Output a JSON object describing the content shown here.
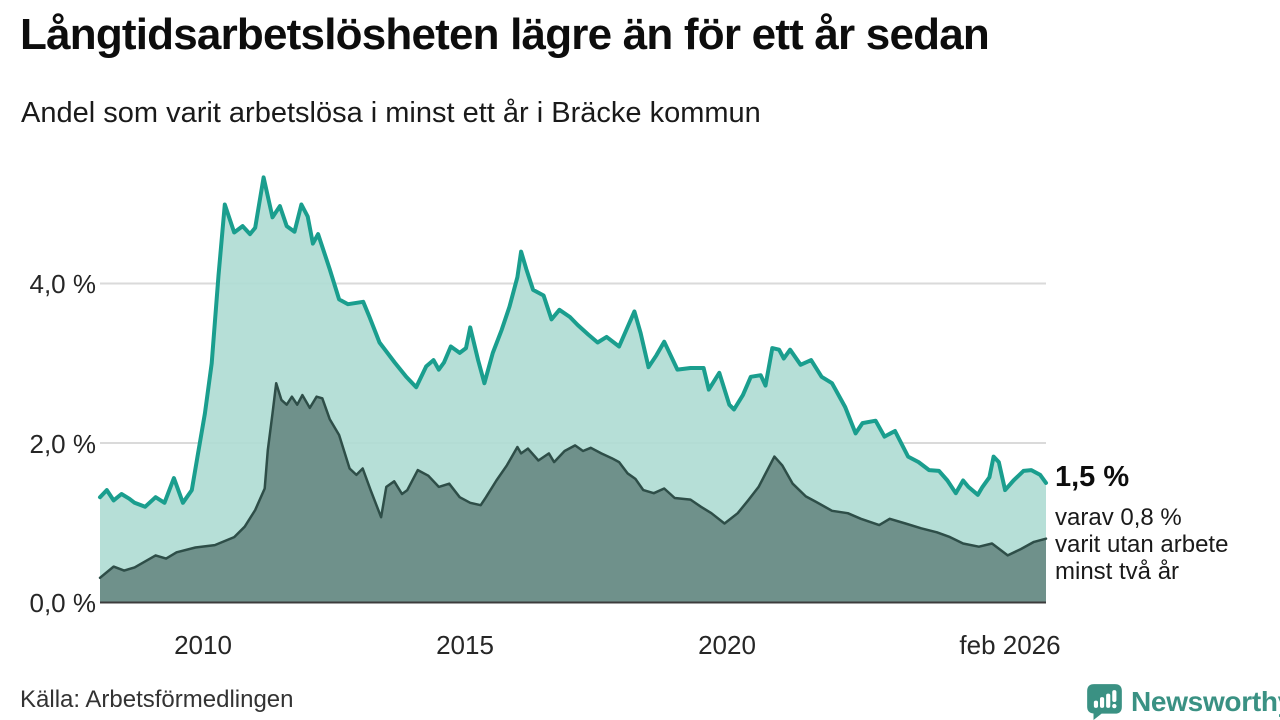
{
  "annotation": {
    "value_label": "1,5 %",
    "lines": [
      "varav 0,8 %",
      "varit utan arbete",
      "minst två år"
    ]
  },
  "footer": {
    "source": "Källa: Arbetsförmedlingen",
    "brand": "Newsworthy"
  },
  "colors": {
    "line_1yr": "#1a9e8e",
    "fill_1yr": "#aedbd3",
    "line_2yr": "#2e4e48",
    "fill_2yr": "#6f918b",
    "grid": "#dadada",
    "axis": "#3c3c3c",
    "brand_teal": "#3a9183"
  },
  "chart_data": {
    "type": "area",
    "title": "Långtidsarbetslösheten lägre än för ett år sedan",
    "subtitle": "Andel som varit arbetslösa i minst ett år i Bräcke kommun",
    "xlabel": "",
    "ylabel": "",
    "grid": "horizontal",
    "legend_position": "none",
    "xlim": [
      2008.04,
      2026.08
    ],
    "ylim": [
      0,
      5.6
    ],
    "yticks": [
      {
        "value": 4,
        "label": "4,0 %"
      },
      {
        "value": 2,
        "label": "2,0 %"
      },
      {
        "value": 0,
        "label": "0,0 %"
      }
    ],
    "xticks": [
      {
        "x": 2010,
        "label": "2010"
      },
      {
        "x": 2015,
        "label": "2015"
      },
      {
        "x": 2020,
        "label": "2020"
      },
      {
        "x": 2026.08,
        "label": "feb 2026"
      }
    ],
    "end_values": {
      "unemployed_min_1yr_pct": 1.5,
      "unemployed_min_2yr_pct": 0.8
    },
    "series": [
      {
        "name": "Arbetslösa minst ett år",
        "color": "#1a9e8e",
        "fill": "#aedbd3",
        "fill_opacity": 0.9,
        "stroke_width": 4,
        "points": [
          [
            2008.04,
            1.32
          ],
          [
            2008.17,
            1.41
          ],
          [
            2008.3,
            1.28
          ],
          [
            2008.45,
            1.36
          ],
          [
            2008.6,
            1.3
          ],
          [
            2008.7,
            1.25
          ],
          [
            2008.9,
            1.2
          ],
          [
            2009.1,
            1.32
          ],
          [
            2009.27,
            1.25
          ],
          [
            2009.45,
            1.56
          ],
          [
            2009.62,
            1.25
          ],
          [
            2009.79,
            1.41
          ],
          [
            2009.9,
            1.83
          ],
          [
            2010.04,
            2.37
          ],
          [
            2010.17,
            3.0
          ],
          [
            2010.3,
            4.1
          ],
          [
            2010.42,
            4.99
          ],
          [
            2010.6,
            4.64
          ],
          [
            2010.76,
            4.72
          ],
          [
            2010.9,
            4.62
          ],
          [
            2011.0,
            4.7
          ],
          [
            2011.16,
            5.33
          ],
          [
            2011.33,
            4.83
          ],
          [
            2011.47,
            4.97
          ],
          [
            2011.6,
            4.72
          ],
          [
            2011.75,
            4.65
          ],
          [
            2011.88,
            4.99
          ],
          [
            2012.0,
            4.84
          ],
          [
            2012.1,
            4.5
          ],
          [
            2012.2,
            4.62
          ],
          [
            2012.42,
            4.18
          ],
          [
            2012.6,
            3.8
          ],
          [
            2012.77,
            3.74
          ],
          [
            2013.06,
            3.77
          ],
          [
            2013.18,
            3.58
          ],
          [
            2013.37,
            3.26
          ],
          [
            2013.66,
            3.01
          ],
          [
            2013.88,
            2.83
          ],
          [
            2014.07,
            2.7
          ],
          [
            2014.26,
            2.96
          ],
          [
            2014.4,
            3.04
          ],
          [
            2014.5,
            2.92
          ],
          [
            2014.6,
            3.01
          ],
          [
            2014.73,
            3.21
          ],
          [
            2014.9,
            3.13
          ],
          [
            2015.02,
            3.19
          ],
          [
            2015.1,
            3.45
          ],
          [
            2015.25,
            3.04
          ],
          [
            2015.37,
            2.75
          ],
          [
            2015.53,
            3.13
          ],
          [
            2015.7,
            3.42
          ],
          [
            2015.85,
            3.71
          ],
          [
            2016.0,
            4.08
          ],
          [
            2016.07,
            4.4
          ],
          [
            2016.17,
            4.18
          ],
          [
            2016.3,
            3.92
          ],
          [
            2016.5,
            3.85
          ],
          [
            2016.65,
            3.55
          ],
          [
            2016.8,
            3.67
          ],
          [
            2017.0,
            3.58
          ],
          [
            2017.15,
            3.48
          ],
          [
            2017.35,
            3.36
          ],
          [
            2017.53,
            3.26
          ],
          [
            2017.7,
            3.33
          ],
          [
            2017.94,
            3.21
          ],
          [
            2018.23,
            3.65
          ],
          [
            2018.35,
            3.38
          ],
          [
            2018.5,
            2.95
          ],
          [
            2018.65,
            3.1
          ],
          [
            2018.8,
            3.27
          ],
          [
            2019.05,
            2.92
          ],
          [
            2019.3,
            2.94
          ],
          [
            2019.55,
            2.94
          ],
          [
            2019.65,
            2.67
          ],
          [
            2019.85,
            2.88
          ],
          [
            2020.04,
            2.48
          ],
          [
            2020.13,
            2.42
          ],
          [
            2020.3,
            2.6
          ],
          [
            2020.45,
            2.83
          ],
          [
            2020.64,
            2.85
          ],
          [
            2020.73,
            2.72
          ],
          [
            2020.86,
            3.19
          ],
          [
            2020.99,
            3.17
          ],
          [
            2021.08,
            3.06
          ],
          [
            2021.2,
            3.17
          ],
          [
            2021.4,
            2.98
          ],
          [
            2021.6,
            3.04
          ],
          [
            2021.8,
            2.83
          ],
          [
            2022.0,
            2.75
          ],
          [
            2022.25,
            2.45
          ],
          [
            2022.45,
            2.12
          ],
          [
            2022.58,
            2.25
          ],
          [
            2022.83,
            2.28
          ],
          [
            2023.0,
            2.08
          ],
          [
            2023.2,
            2.15
          ],
          [
            2023.45,
            1.83
          ],
          [
            2023.65,
            1.76
          ],
          [
            2023.85,
            1.66
          ],
          [
            2024.04,
            1.65
          ],
          [
            2024.2,
            1.53
          ],
          [
            2024.36,
            1.37
          ],
          [
            2024.5,
            1.53
          ],
          [
            2024.6,
            1.45
          ],
          [
            2024.78,
            1.35
          ],
          [
            2024.87,
            1.45
          ],
          [
            2025.0,
            1.57
          ],
          [
            2025.08,
            1.83
          ],
          [
            2025.18,
            1.76
          ],
          [
            2025.3,
            1.41
          ],
          [
            2025.46,
            1.53
          ],
          [
            2025.65,
            1.65
          ],
          [
            2025.8,
            1.66
          ],
          [
            2025.97,
            1.6
          ],
          [
            2026.08,
            1.5
          ]
        ]
      },
      {
        "name": "Arbetslösa minst två år",
        "color": "#2e4e48",
        "fill": "#6f918b",
        "fill_opacity": 1,
        "stroke_width": 2.5,
        "points": [
          [
            2008.04,
            0.31
          ],
          [
            2008.3,
            0.45
          ],
          [
            2008.5,
            0.4
          ],
          [
            2008.7,
            0.44
          ],
          [
            2009.1,
            0.59
          ],
          [
            2009.3,
            0.55
          ],
          [
            2009.5,
            0.63
          ],
          [
            2009.86,
            0.69
          ],
          [
            2010.23,
            0.72
          ],
          [
            2010.6,
            0.82
          ],
          [
            2010.8,
            0.95
          ],
          [
            2011.0,
            1.16
          ],
          [
            2011.18,
            1.43
          ],
          [
            2011.24,
            1.91
          ],
          [
            2011.33,
            2.37
          ],
          [
            2011.4,
            2.75
          ],
          [
            2011.5,
            2.54
          ],
          [
            2011.6,
            2.48
          ],
          [
            2011.7,
            2.58
          ],
          [
            2011.8,
            2.48
          ],
          [
            2011.9,
            2.6
          ],
          [
            2012.04,
            2.44
          ],
          [
            2012.17,
            2.58
          ],
          [
            2012.28,
            2.56
          ],
          [
            2012.42,
            2.3
          ],
          [
            2012.6,
            2.1
          ],
          [
            2012.8,
            1.68
          ],
          [
            2012.93,
            1.6
          ],
          [
            2013.05,
            1.68
          ],
          [
            2013.2,
            1.41
          ],
          [
            2013.4,
            1.07
          ],
          [
            2013.5,
            1.45
          ],
          [
            2013.65,
            1.52
          ],
          [
            2013.8,
            1.36
          ],
          [
            2013.9,
            1.41
          ],
          [
            2014.1,
            1.66
          ],
          [
            2014.3,
            1.59
          ],
          [
            2014.5,
            1.45
          ],
          [
            2014.7,
            1.49
          ],
          [
            2014.9,
            1.32
          ],
          [
            2015.1,
            1.25
          ],
          [
            2015.3,
            1.22
          ],
          [
            2015.4,
            1.32
          ],
          [
            2015.6,
            1.53
          ],
          [
            2015.8,
            1.72
          ],
          [
            2016.0,
            1.95
          ],
          [
            2016.07,
            1.87
          ],
          [
            2016.2,
            1.93
          ],
          [
            2016.4,
            1.78
          ],
          [
            2016.6,
            1.87
          ],
          [
            2016.7,
            1.76
          ],
          [
            2016.9,
            1.9
          ],
          [
            2017.1,
            1.97
          ],
          [
            2017.25,
            1.9
          ],
          [
            2017.4,
            1.94
          ],
          [
            2017.6,
            1.87
          ],
          [
            2017.8,
            1.81
          ],
          [
            2017.94,
            1.76
          ],
          [
            2018.1,
            1.62
          ],
          [
            2018.25,
            1.55
          ],
          [
            2018.4,
            1.41
          ],
          [
            2018.6,
            1.37
          ],
          [
            2018.8,
            1.43
          ],
          [
            2019.0,
            1.31
          ],
          [
            2019.3,
            1.29
          ],
          [
            2019.5,
            1.2
          ],
          [
            2019.7,
            1.12
          ],
          [
            2019.95,
            0.99
          ],
          [
            2020.2,
            1.12
          ],
          [
            2020.4,
            1.28
          ],
          [
            2020.6,
            1.45
          ],
          [
            2020.9,
            1.83
          ],
          [
            2021.05,
            1.72
          ],
          [
            2021.25,
            1.49
          ],
          [
            2021.5,
            1.33
          ],
          [
            2021.7,
            1.26
          ],
          [
            2022.0,
            1.15
          ],
          [
            2022.3,
            1.12
          ],
          [
            2022.55,
            1.05
          ],
          [
            2022.9,
            0.97
          ],
          [
            2023.1,
            1.05
          ],
          [
            2023.4,
            0.99
          ],
          [
            2023.7,
            0.93
          ],
          [
            2024.0,
            0.88
          ],
          [
            2024.25,
            0.82
          ],
          [
            2024.5,
            0.74
          ],
          [
            2024.8,
            0.7
          ],
          [
            2025.05,
            0.74
          ],
          [
            2025.35,
            0.59
          ],
          [
            2025.6,
            0.67
          ],
          [
            2025.85,
            0.76
          ],
          [
            2026.08,
            0.8
          ]
        ]
      }
    ]
  }
}
